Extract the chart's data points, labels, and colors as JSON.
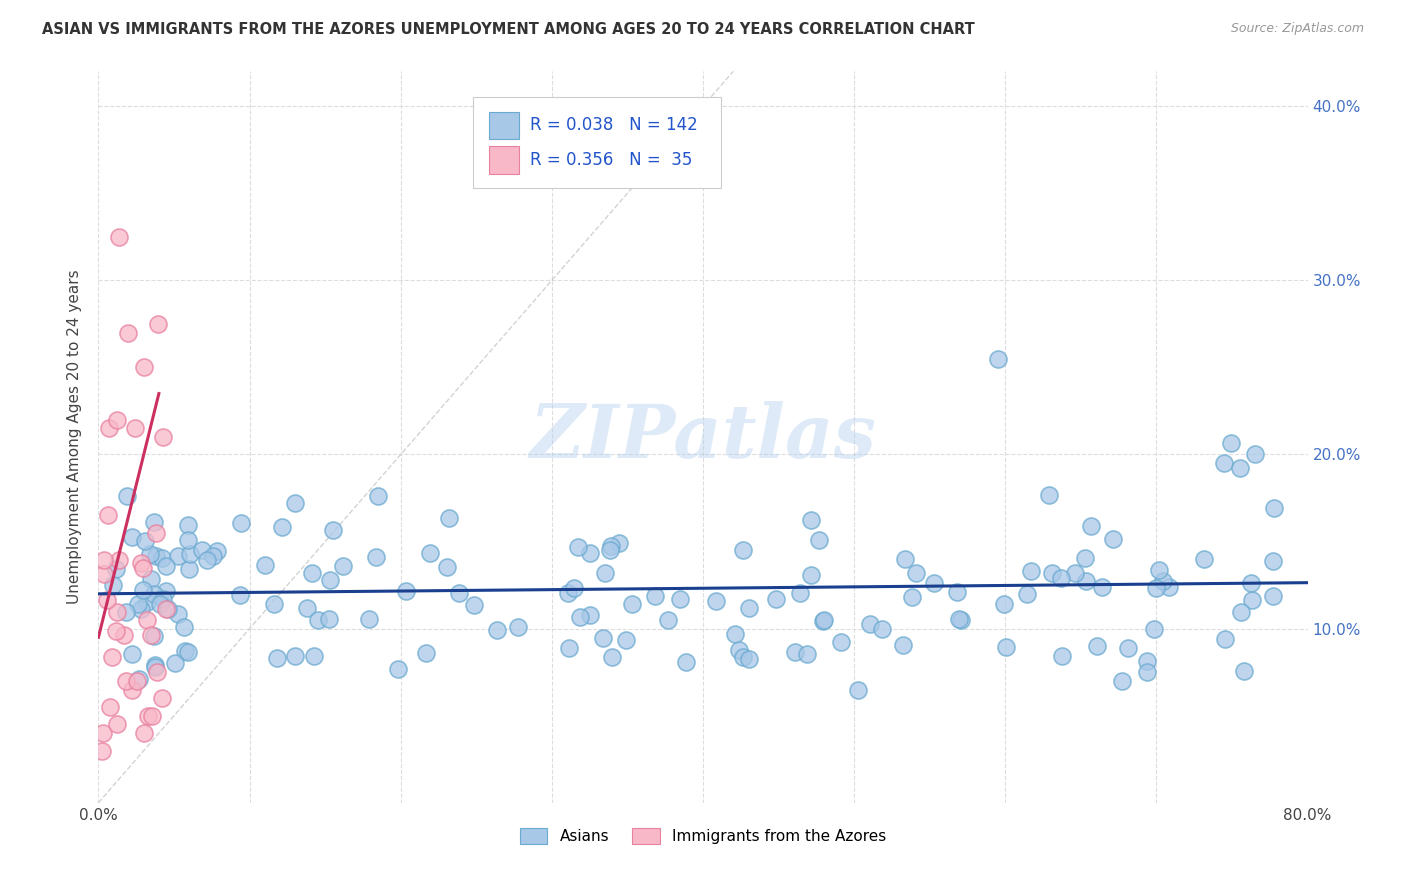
{
  "title": "ASIAN VS IMMIGRANTS FROM THE AZORES UNEMPLOYMENT AMONG AGES 20 TO 24 YEARS CORRELATION CHART",
  "source": "Source: ZipAtlas.com",
  "ylabel": "Unemployment Among Ages 20 to 24 years",
  "xlim": [
    0.0,
    0.8
  ],
  "ylim": [
    0.0,
    0.42
  ],
  "xtick_positions": [
    0.0,
    0.1,
    0.2,
    0.3,
    0.4,
    0.5,
    0.6,
    0.7,
    0.8
  ],
  "xticklabels": [
    "0.0%",
    "",
    "",
    "",
    "",
    "",
    "",
    "",
    "80.0%"
  ],
  "ytick_positions": [
    0.1,
    0.2,
    0.3,
    0.4
  ],
  "ytick_labels_right": [
    "10.0%",
    "20.0%",
    "30.0%",
    "40.0%"
  ],
  "blue_color": "#A8C8E8",
  "blue_edge_color": "#6BAAD0",
  "pink_color": "#F8B8C8",
  "pink_edge_color": "#E880A0",
  "blue_line_color": "#1A3F8F",
  "pink_line_color": "#CC3060",
  "diag_line_color": "#C8C8C8",
  "legend_R_blue": "0.038",
  "legend_N_blue": "142",
  "legend_R_pink": "0.356",
  "legend_N_pink": "35",
  "label_blue": "Asians",
  "label_pink": "Immigrants from the Azores",
  "watermark": "ZIPatlas",
  "watermark_color": "#B0CCEE",
  "title_color": "#333333",
  "axis_label_color": "#4472C4",
  "text_color": "#444444",
  "grid_color": "#DDDDDD",
  "legend_text_color": "#2255CC"
}
